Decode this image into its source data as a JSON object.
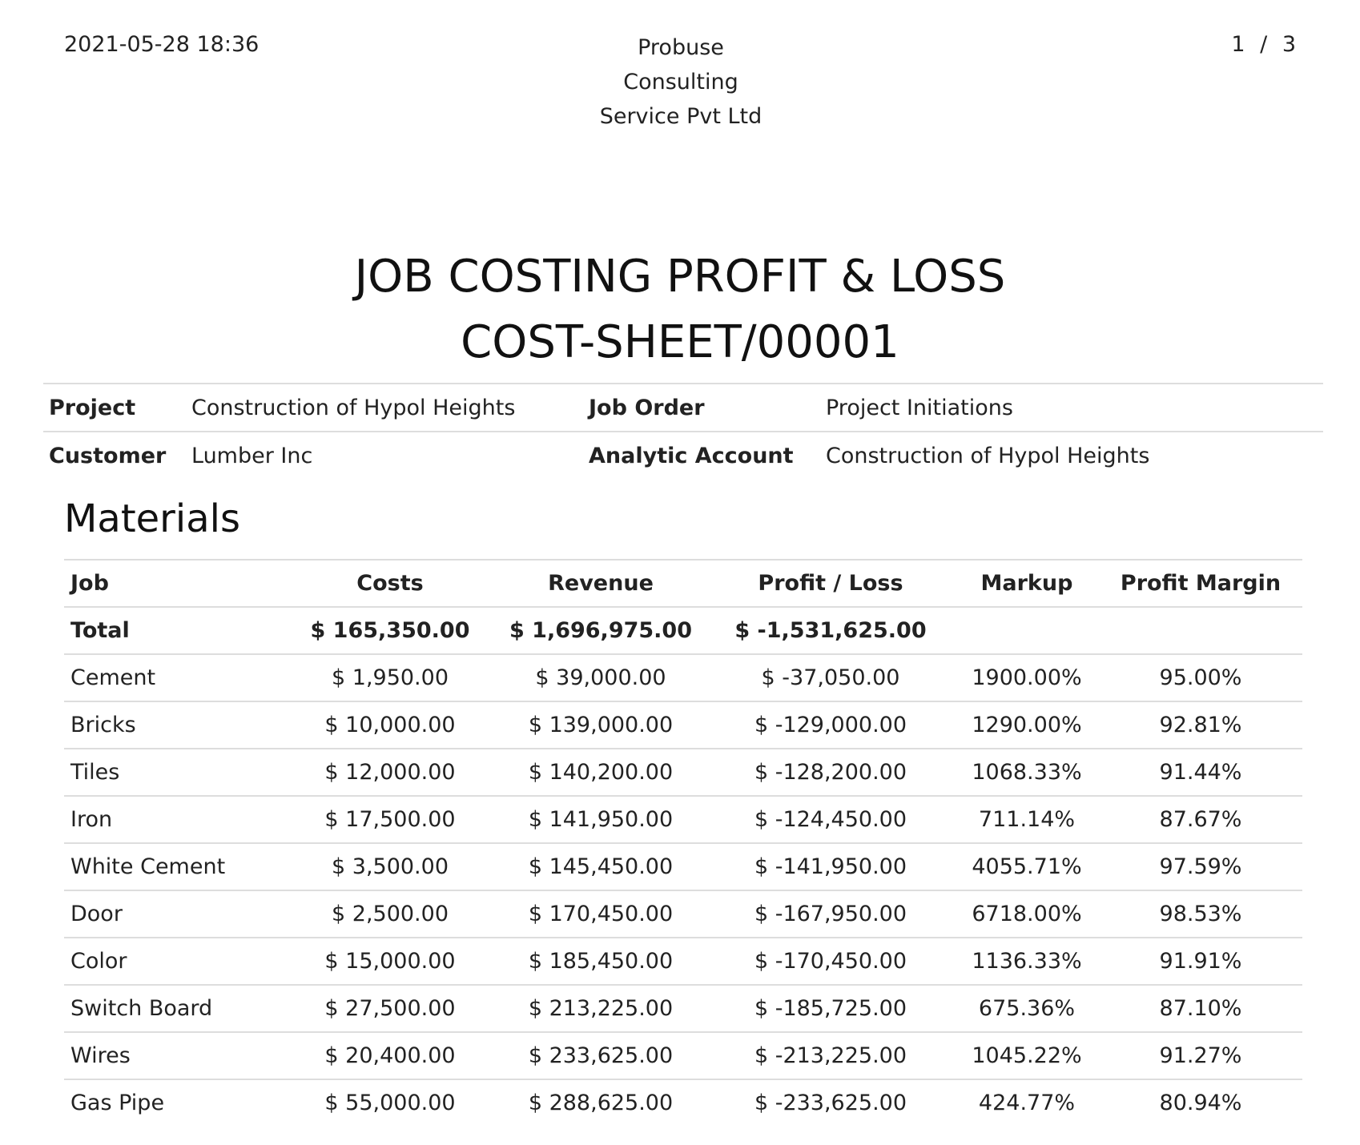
{
  "header": {
    "date": "2021-05-28 18:36",
    "company_lines": [
      "Probuse",
      "Consulting",
      "Service Pvt Ltd"
    ],
    "page": "1 / 3"
  },
  "title": {
    "line1": "JOB COSTING PROFIT & LOSS",
    "line2": "COST-SHEET/00001"
  },
  "info": {
    "project_label": "Project",
    "project_value": "Construction of Hypol Heights",
    "job_order_label": "Job Order",
    "job_order_value": "Project Initiations",
    "customer_label": "Customer",
    "customer_value": "Lumber Inc",
    "analytic_label": "Analytic Account",
    "analytic_value": "Construction of Hypol Heights"
  },
  "materials": {
    "title": "Materials",
    "headers": [
      "Job",
      "Costs",
      "Revenue",
      "Profit / Loss",
      "Markup",
      "Profit Margin"
    ],
    "total": {
      "job": "Total",
      "costs": "$ 165,350.00",
      "revenue": "$ 1,696,975.00",
      "profit_loss": "$ -1,531,625.00",
      "markup": "",
      "margin": ""
    },
    "rows": [
      {
        "job": "Cement",
        "costs": "$ 1,950.00",
        "revenue": "$ 39,000.00",
        "profit_loss": "$ -37,050.00",
        "markup": "1900.00%",
        "margin": "95.00%"
      },
      {
        "job": "Bricks",
        "costs": "$ 10,000.00",
        "revenue": "$ 139,000.00",
        "profit_loss": "$ -129,000.00",
        "markup": "1290.00%",
        "margin": "92.81%"
      },
      {
        "job": "Tiles",
        "costs": "$ 12,000.00",
        "revenue": "$ 140,200.00",
        "profit_loss": "$ -128,200.00",
        "markup": "1068.33%",
        "margin": "91.44%"
      },
      {
        "job": "Iron",
        "costs": "$ 17,500.00",
        "revenue": "$ 141,950.00",
        "profit_loss": "$ -124,450.00",
        "markup": "711.14%",
        "margin": "87.67%"
      },
      {
        "job": "White Cement",
        "costs": "$ 3,500.00",
        "revenue": "$ 145,450.00",
        "profit_loss": "$ -141,950.00",
        "markup": "4055.71%",
        "margin": "97.59%"
      },
      {
        "job": "Door",
        "costs": "$ 2,500.00",
        "revenue": "$ 170,450.00",
        "profit_loss": "$ -167,950.00",
        "markup": "6718.00%",
        "margin": "98.53%"
      },
      {
        "job": "Color",
        "costs": "$ 15,000.00",
        "revenue": "$ 185,450.00",
        "profit_loss": "$ -170,450.00",
        "markup": "1136.33%",
        "margin": "91.91%"
      },
      {
        "job": "Switch Board",
        "costs": "$ 27,500.00",
        "revenue": "$ 213,225.00",
        "profit_loss": "$ -185,725.00",
        "markup": "675.36%",
        "margin": "87.10%"
      },
      {
        "job": "Wires",
        "costs": "$ 20,400.00",
        "revenue": "$ 233,625.00",
        "profit_loss": "$ -213,225.00",
        "markup": "1045.22%",
        "margin": "91.27%"
      },
      {
        "job": "Gas Pipe",
        "costs": "$ 55,000.00",
        "revenue": "$ 288,625.00",
        "profit_loss": "$ -233,625.00",
        "markup": "424.77%",
        "margin": "80.94%"
      }
    ]
  }
}
